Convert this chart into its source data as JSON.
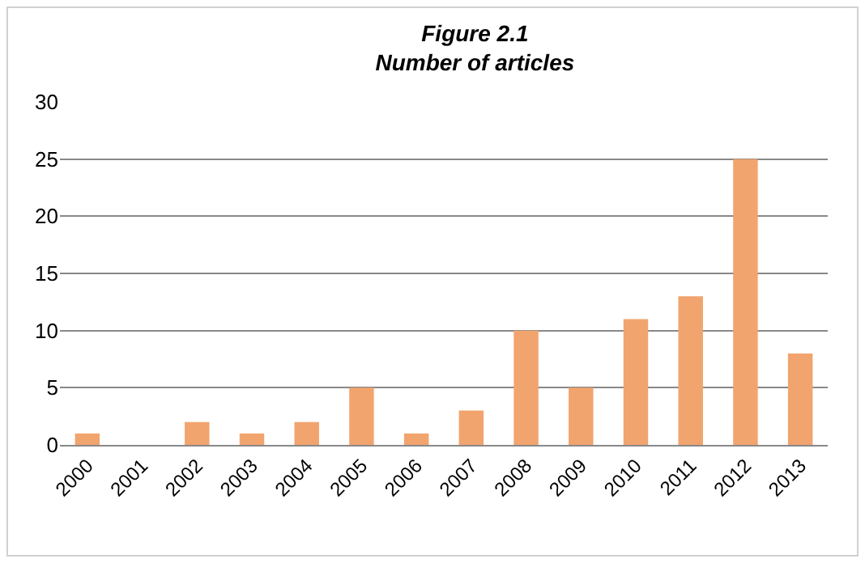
{
  "chart_data": {
    "type": "bar",
    "title": "Figure 2.1\nNumber of articles",
    "categories": [
      "2000",
      "2001",
      "2002",
      "2003",
      "2004",
      "2005",
      "2006",
      "2007",
      "2008",
      "2009",
      "2010",
      "2011",
      "2012",
      "2013"
    ],
    "values": [
      1,
      0,
      2,
      1,
      2,
      5,
      1,
      3,
      10,
      5,
      11,
      13,
      25,
      8
    ],
    "color": "#f2a46e",
    "ylim": [
      0,
      30
    ],
    "yticks": [
      0,
      5,
      10,
      15,
      20,
      25,
      30
    ],
    "grid": "y"
  }
}
